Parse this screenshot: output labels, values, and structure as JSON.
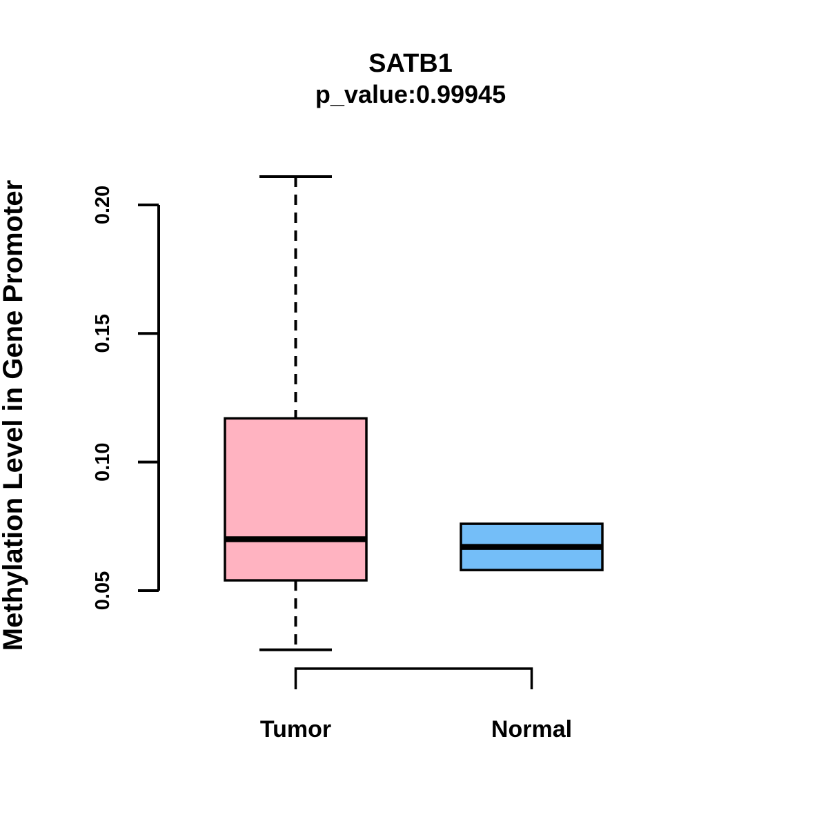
{
  "chart_data": {
    "type": "boxplot",
    "title": "SATB1",
    "subtitle": "p_value:0.99945",
    "ylabel": "Methylation Level in Gene Promoter",
    "xlabel": "",
    "categories": [
      "Tumor",
      "Normal"
    ],
    "y_ticks": [
      0.05,
      0.1,
      0.15,
      0.2
    ],
    "y_tick_labels": [
      "0.05",
      "0.10",
      "0.15",
      "0.20"
    ],
    "ylim": [
      0.027,
      0.211
    ],
    "grid": false,
    "legend_position": "none",
    "series": [
      {
        "name": "Tumor",
        "color": "#FFB3C1",
        "whisker_low": 0.027,
        "q1": 0.054,
        "median": 0.07,
        "q3": 0.117,
        "whisker_high": 0.211
      },
      {
        "name": "Normal",
        "color": "#74BEF8",
        "whisker_low": 0.058,
        "q1": 0.058,
        "median": 0.067,
        "q3": 0.076,
        "whisker_high": 0.076
      }
    ],
    "colors": {
      "box_border": "#000000",
      "median_line": "#000000",
      "axis": "#000000",
      "background": "#ffffff"
    }
  }
}
